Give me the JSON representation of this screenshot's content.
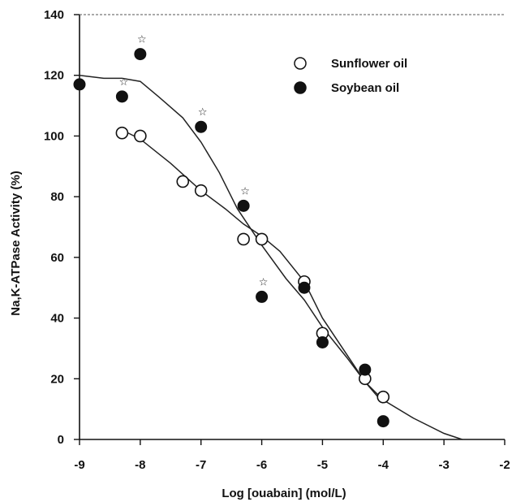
{
  "chart_data": {
    "type": "scatter",
    "title": "",
    "xlabel": "Log [ouabain] (mol/L)",
    "ylabel": "Na,K-ATPase Activity (%)",
    "xlim": [
      -9,
      -2
    ],
    "ylim": [
      0,
      140
    ],
    "x_ticks": [
      -9,
      -8,
      -7,
      -6,
      -5,
      -4,
      -3,
      -2
    ],
    "x_tick_labels": [
      "-9",
      "-8",
      "-7",
      "-6",
      "-5",
      "-4",
      "-3",
      "-2"
    ],
    "y_ticks": [
      0,
      20,
      40,
      60,
      80,
      100,
      120,
      140
    ],
    "y_tick_labels": [
      "0",
      "20",
      "40",
      "60",
      "80",
      "100",
      "120",
      "140"
    ],
    "legend_position": "top-right",
    "significance_marker": "☆",
    "series": [
      {
        "name": "Sunflower oil",
        "marker": "open-circle",
        "color": "#111111",
        "points": [
          {
            "x": -8.3,
            "y": 101
          },
          {
            "x": -8.0,
            "y": 100
          },
          {
            "x": -7.3,
            "y": 85
          },
          {
            "x": -7.0,
            "y": 82
          },
          {
            "x": -6.3,
            "y": 66
          },
          {
            "x": -6.0,
            "y": 66
          },
          {
            "x": -5.3,
            "y": 52
          },
          {
            "x": -5.0,
            "y": 35
          },
          {
            "x": -4.3,
            "y": 20
          },
          {
            "x": -4.0,
            "y": 14
          }
        ],
        "fit_curve": [
          {
            "x": -8.3,
            "y": 102
          },
          {
            "x": -8.0,
            "y": 99
          },
          {
            "x": -7.5,
            "y": 91
          },
          {
            "x": -7.0,
            "y": 82
          },
          {
            "x": -6.6,
            "y": 76
          },
          {
            "x": -6.3,
            "y": 71
          },
          {
            "x": -6.0,
            "y": 67
          },
          {
            "x": -5.7,
            "y": 62
          },
          {
            "x": -5.3,
            "y": 52
          },
          {
            "x": -5.0,
            "y": 40
          },
          {
            "x": -4.6,
            "y": 28
          },
          {
            "x": -4.3,
            "y": 19
          },
          {
            "x": -4.0,
            "y": 13
          },
          {
            "x": -3.5,
            "y": 7
          },
          {
            "x": -3.0,
            "y": 2
          },
          {
            "x": -2.7,
            "y": 0
          }
        ]
      },
      {
        "name": "Soybean oil",
        "marker": "filled-circle",
        "color": "#111111",
        "points": [
          {
            "x": -9.0,
            "y": 117
          },
          {
            "x": -8.3,
            "y": 113,
            "significant": true
          },
          {
            "x": -8.0,
            "y": 127,
            "significant": true
          },
          {
            "x": -7.0,
            "y": 103,
            "significant": true
          },
          {
            "x": -6.3,
            "y": 77,
            "significant": true
          },
          {
            "x": -6.0,
            "y": 47,
            "significant": true
          },
          {
            "x": -5.3,
            "y": 50
          },
          {
            "x": -5.0,
            "y": 32
          },
          {
            "x": -4.3,
            "y": 23
          },
          {
            "x": -4.0,
            "y": 6
          }
        ],
        "fit_curve": [
          {
            "x": -9.0,
            "y": 120
          },
          {
            "x": -8.6,
            "y": 119
          },
          {
            "x": -8.3,
            "y": 119
          },
          {
            "x": -8.0,
            "y": 118
          },
          {
            "x": -7.7,
            "y": 113
          },
          {
            "x": -7.3,
            "y": 106
          },
          {
            "x": -7.0,
            "y": 98
          },
          {
            "x": -6.7,
            "y": 88
          },
          {
            "x": -6.4,
            "y": 76
          },
          {
            "x": -6.0,
            "y": 64
          },
          {
            "x": -5.6,
            "y": 53
          },
          {
            "x": -5.3,
            "y": 46
          },
          {
            "x": -5.0,
            "y": 37
          },
          {
            "x": -4.6,
            "y": 27
          },
          {
            "x": -4.3,
            "y": 19
          },
          {
            "x": -4.0,
            "y": 12
          }
        ]
      }
    ]
  }
}
